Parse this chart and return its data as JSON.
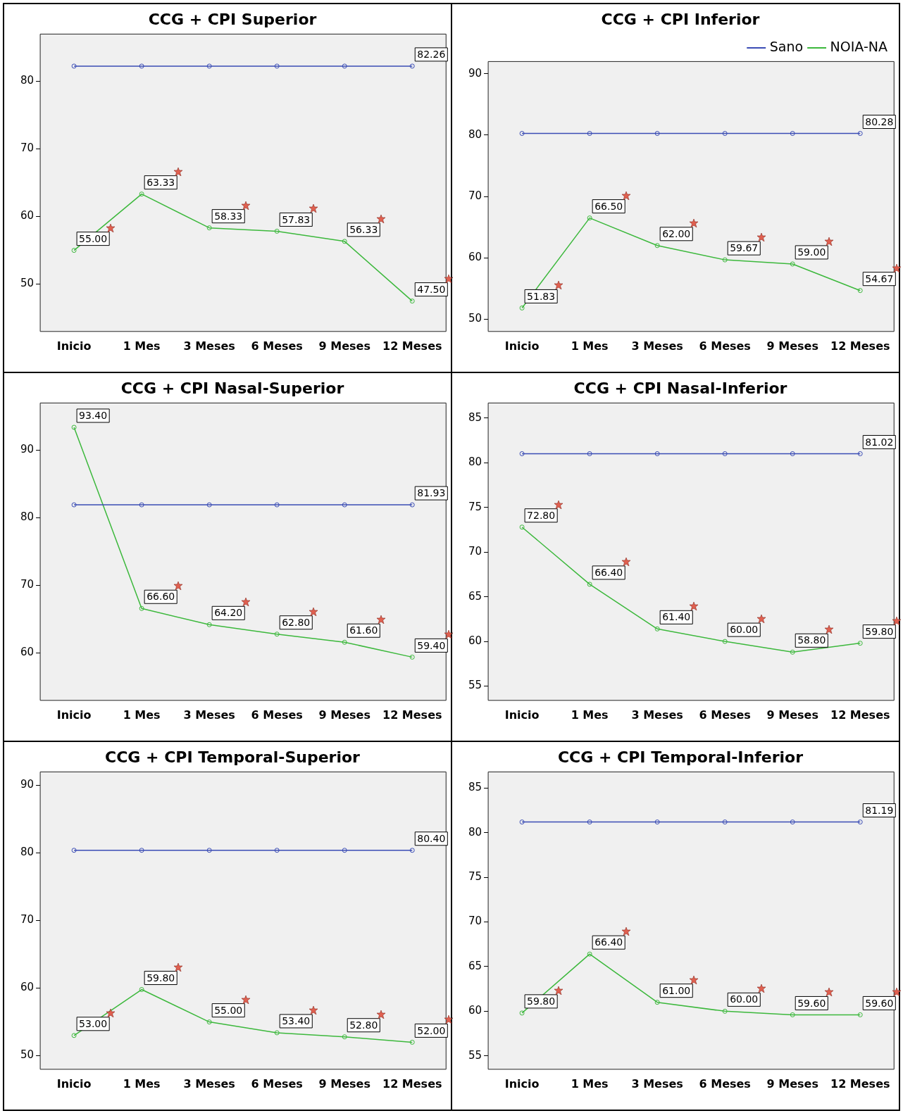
{
  "chart_data": [
    {
      "type": "line",
      "title": "CCG + CPI Superior",
      "categories": [
        "Inicio",
        "1 Mes",
        "3 Meses",
        "6 Meses",
        "9 Meses",
        "12 Meses"
      ],
      "ylim": [
        43,
        87
      ],
      "yticks": [
        50,
        60,
        70,
        80
      ],
      "marker": "circle",
      "grid": false,
      "legend": false,
      "series": [
        {
          "color": "#3a4cb5",
          "values": [
            82.26,
            82.26,
            82.26,
            82.26,
            82.26,
            82.26
          ],
          "value_labels": [
            null,
            null,
            null,
            null,
            null,
            "82.26"
          ]
        },
        {
          "color": "#3cb83c",
          "values": [
            55.0,
            63.33,
            58.33,
            57.83,
            56.33,
            47.5
          ],
          "value_labels": [
            "55.00",
            "63.33",
            "58.33",
            "57.83",
            "56.33",
            "47.50"
          ]
        }
      ]
    },
    {
      "type": "line",
      "title": "CCG + CPI Inferior",
      "categories": [
        "Inicio",
        "1 Mes",
        "3 Meses",
        "6 Meses",
        "9 Meses",
        "12 Meses"
      ],
      "ylim": [
        48,
        92
      ],
      "yticks": [
        50,
        60,
        70,
        80,
        90
      ],
      "marker": "circle",
      "grid": false,
      "legend": "top right",
      "series": [
        {
          "name": "Sano",
          "color": "#3a4cb5",
          "values": [
            80.28,
            80.28,
            80.28,
            80.28,
            80.28,
            80.28
          ],
          "value_labels": [
            null,
            null,
            null,
            null,
            null,
            "80.28"
          ]
        },
        {
          "name": "NOIA-NA",
          "color": "#3cb83c",
          "values": [
            51.83,
            66.5,
            62.0,
            59.67,
            59.0,
            54.67
          ],
          "value_labels": [
            "51.83",
            "66.50",
            "62.00",
            "59.67",
            "59.00",
            "54.67"
          ]
        }
      ]
    },
    {
      "type": "line",
      "title": "CCG + CPI Nasal-Superior",
      "categories": [
        "Inicio",
        "1 Mes",
        "3 Meses",
        "6 Meses",
        "9 Meses",
        "12 Meses"
      ],
      "ylim": [
        53,
        97
      ],
      "yticks": [
        60,
        70,
        80,
        90
      ],
      "marker": "circle",
      "grid": false,
      "legend": false,
      "series": [
        {
          "color": "#3a4cb5",
          "values": [
            81.93,
            81.93,
            81.93,
            81.93,
            81.93,
            81.93
          ],
          "value_labels": [
            null,
            null,
            null,
            null,
            null,
            "81.93"
          ]
        },
        {
          "color": "#3cb83c",
          "values": [
            93.4,
            66.6,
            64.2,
            62.8,
            61.6,
            59.4
          ],
          "value_labels": [
            "93.40",
            "66.60",
            "64.20",
            "62.80",
            "61.60",
            "59.40"
          ]
        }
      ]
    },
    {
      "type": "line",
      "title": "CCG + CPI Nasal-Inferior",
      "categories": [
        "Inicio",
        "1 Mes",
        "3 Meses",
        "6 Meses",
        "9 Meses",
        "12 Meses"
      ],
      "ylim": [
        53.4,
        86.7
      ],
      "yticks": [
        55,
        60,
        65,
        70,
        75,
        80,
        85
      ],
      "marker": "circle",
      "grid": false,
      "legend": false,
      "series": [
        {
          "color": "#3a4cb5",
          "values": [
            81.02,
            81.02,
            81.02,
            81.02,
            81.02,
            81.02
          ],
          "value_labels": [
            null,
            null,
            null,
            null,
            null,
            "81.02"
          ]
        },
        {
          "color": "#3cb83c",
          "values": [
            72.8,
            66.4,
            61.4,
            60.0,
            58.8,
            59.8
          ],
          "value_labels": [
            "72.80",
            "66.40",
            "61.40",
            "60.00",
            "58.80",
            "59.80"
          ]
        }
      ]
    },
    {
      "type": "line",
      "title": "CCG + CPI Temporal-Superior",
      "categories": [
        "Inicio",
        "1 Mes",
        "3 Meses",
        "6 Meses",
        "9 Meses",
        "12 Meses"
      ],
      "ylim": [
        48,
        92
      ],
      "yticks": [
        50,
        60,
        70,
        80,
        90
      ],
      "marker": "circle",
      "grid": false,
      "legend": false,
      "series": [
        {
          "color": "#3a4cb5",
          "values": [
            80.4,
            80.4,
            80.4,
            80.4,
            80.4,
            80.4
          ],
          "value_labels": [
            null,
            null,
            null,
            null,
            null,
            "80.40"
          ]
        },
        {
          "color": "#3cb83c",
          "values": [
            53.0,
            59.8,
            55.0,
            53.4,
            52.8,
            52.0
          ],
          "value_labels": [
            "53.00",
            "59.80",
            "55.00",
            "53.40",
            "52.80",
            "52.00"
          ]
        }
      ]
    },
    {
      "type": "line",
      "title": "CCG + CPI Temporal-Inferior",
      "categories": [
        "Inicio",
        "1 Mes",
        "3 Meses",
        "6 Meses",
        "9 Meses",
        "12 Meses"
      ],
      "ylim": [
        53.5,
        86.8
      ],
      "yticks": [
        55,
        60,
        65,
        70,
        75,
        80,
        85
      ],
      "marker": "circle",
      "grid": false,
      "legend": false,
      "series": [
        {
          "color": "#3a4cb5",
          "values": [
            81.19,
            81.19,
            81.19,
            81.19,
            81.19,
            81.19
          ],
          "value_labels": [
            null,
            null,
            null,
            null,
            null,
            "81.19"
          ]
        },
        {
          "color": "#3cb83c",
          "values": [
            59.8,
            66.4,
            61.0,
            60.0,
            59.6,
            59.6
          ],
          "value_labels": [
            "59.80",
            "66.40",
            "61.00",
            "60.00",
            "59.60",
            "59.60"
          ]
        }
      ]
    }
  ]
}
